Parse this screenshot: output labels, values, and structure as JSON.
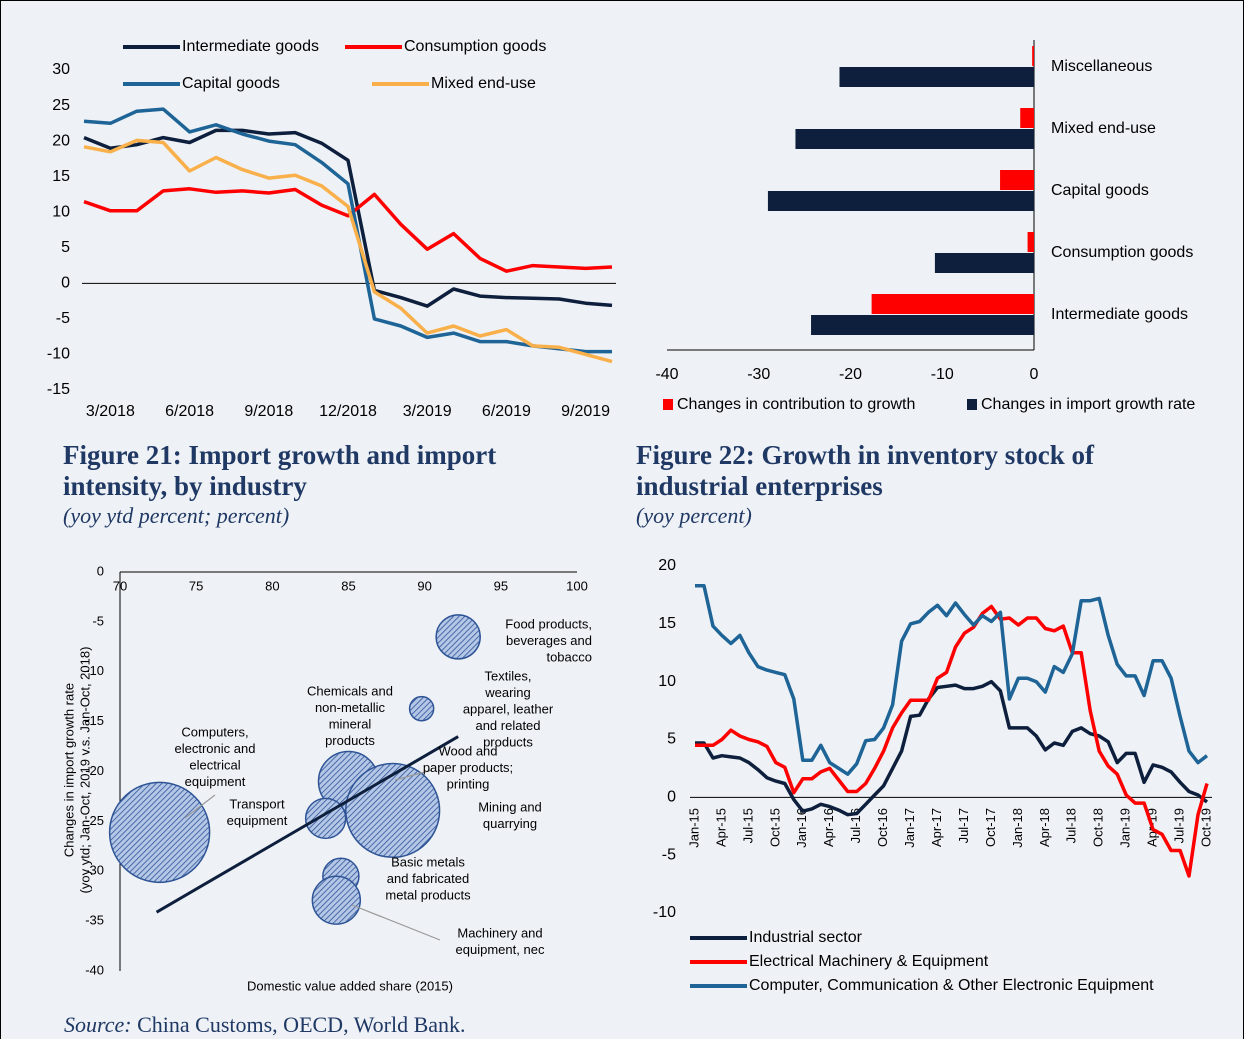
{
  "chart_data": [
    {
      "type": "line",
      "categories": [
        null,
        "3/2018",
        null,
        null,
        "6/2018",
        null,
        null,
        "9/2018",
        null,
        null,
        "12/2018",
        null,
        null,
        "3/2019",
        null,
        null,
        "6/2019",
        null,
        null,
        "9/2019",
        null
      ],
      "ylim": [
        -15,
        30
      ],
      "yticks": [
        30,
        25,
        20,
        15,
        10,
        5,
        0,
        -5,
        -10,
        -15
      ],
      "series": [
        {
          "name": "Intermediate goods",
          "color": "#0d1f3c",
          "values": [
            20.5,
            19,
            19.5,
            20.5,
            19.8,
            21.5,
            21.5,
            21,
            21.2,
            19.7,
            17.3,
            -1,
            -2,
            -3.2,
            -0.8,
            -1.8,
            -2,
            -2.1,
            -2.2,
            -2.8,
            -3.1
          ]
        },
        {
          "name": "Consumption goods",
          "color": "#ff0000",
          "values": [
            11.5,
            10.2,
            10.2,
            13,
            13.3,
            12.8,
            13,
            12.7,
            13.2,
            11,
            9.5,
            12.5,
            8.3,
            4.8,
            7,
            3.5,
            1.7,
            2.5,
            2.3,
            2.1,
            2.3
          ]
        },
        {
          "name": "Capital goods",
          "color": "#1f6496",
          "values": [
            22.8,
            22.5,
            24.2,
            24.5,
            21.3,
            22.3,
            21,
            20,
            19.5,
            17,
            14,
            -5,
            -6,
            -7.6,
            -7,
            -8.2,
            -8.2,
            -8.8,
            -9.2,
            -9.6,
            -9.6
          ]
        },
        {
          "name": "Mixed end-use",
          "color": "#f9b04b",
          "values": [
            19.2,
            18.5,
            20.1,
            19.8,
            15.8,
            17.7,
            16,
            14.8,
            15.2,
            13.7,
            10.8,
            -1.2,
            -3.5,
            -7,
            -6,
            -7.4,
            -6.5,
            -8.8,
            -9,
            -10,
            -11
          ]
        }
      ]
    },
    {
      "type": "bar",
      "orientation": "horizontal",
      "categories": [
        "Miscellaneous",
        "Mixed end-use",
        "Capital goods",
        "Consumption goods",
        "Intermediate goods"
      ],
      "xlim": [
        -40,
        0
      ],
      "xticks": [
        -40,
        -30,
        -20,
        -10,
        0
      ],
      "series": [
        {
          "name": "Changes in contribution to growth",
          "color": "#ff0000",
          "values": [
            -0.2,
            -1.5,
            -3.7,
            -0.7,
            -17.7
          ]
        },
        {
          "name": "Changes in import growth rate",
          "color": "#0d1f3c",
          "values": [
            -21.2,
            -26,
            -29,
            -10.8,
            -24.3
          ]
        }
      ]
    },
    {
      "type": "scatter",
      "xlabel": "Domestic value added share (2015)",
      "ylabel": [
        "Changes in import growth rate",
        "(yoy ytd; Jan-Oct, 2019 v.s. Jan-Oct, 2018)"
      ],
      "xlim": [
        70,
        100
      ],
      "xticks": [
        70,
        75,
        80,
        85,
        90,
        95,
        100
      ],
      "ylim": [
        -40,
        0
      ],
      "yticks": [
        0,
        -5,
        -10,
        -15,
        -20,
        -25,
        -30,
        -35,
        -40
      ],
      "points": [
        {
          "label": [
            "Food products,",
            "beverages and",
            "tobacco"
          ],
          "x": 92.2,
          "y": -6.5,
          "size": 19.4
        },
        {
          "label": [
            "Textiles,",
            "wearing",
            "apparel, leather",
            "and related",
            "products"
          ],
          "x": 89.8,
          "y": -13.7,
          "size": 5.8
        },
        {
          "label": [
            "Chemicals and",
            "non-metallic",
            "mineral",
            "products"
          ],
          "x": 85,
          "y": -21,
          "size": 36
        },
        {
          "label": [
            "Wood and",
            "paper products;",
            "printing"
          ],
          "x": 86.4,
          "y": -22.9,
          "size": 13
        },
        {
          "label": [
            "Mining and",
            "quarrying"
          ],
          "x": 87.9,
          "y": -23.9,
          "size": 88
        },
        {
          "label": [
            "Computers,",
            "electronic and",
            "electrical",
            "equipment"
          ],
          "x": 72.6,
          "y": -26.1,
          "size": 100
        },
        {
          "label": [
            "Transport",
            "equipment"
          ],
          "x": 83.5,
          "y": -24.7,
          "size": 16
        },
        {
          "label": [
            "Basic metals",
            "and fabricated",
            "metal products"
          ],
          "x": 84.5,
          "y": -30.5,
          "size": 13
        },
        {
          "label": [
            "Machinery and",
            "equipment, nec"
          ],
          "x": 84.2,
          "y": -32.9,
          "size": 23
        }
      ],
      "trendline": {
        "color": "#0d1f3c",
        "x": [
          72.4,
          92.2
        ],
        "y": [
          -34.1,
          -16.5
        ]
      }
    },
    {
      "type": "line",
      "categories": [
        "Jan-15",
        null,
        null,
        "Apr-15",
        null,
        null,
        "Jul-15",
        null,
        null,
        "Oct-15",
        null,
        null,
        "Jan-16",
        null,
        null,
        "Apr-16",
        null,
        null,
        "Jul-16",
        null,
        null,
        "Oct-16",
        null,
        null,
        "Jan-17",
        null,
        null,
        "Apr-17",
        null,
        null,
        "Jul-17",
        null,
        null,
        "Oct-17",
        null,
        null,
        "Jan-18",
        null,
        null,
        "Apr-18",
        null,
        null,
        "Jul-18",
        null,
        null,
        "Oct-18",
        null,
        null,
        "Jan-19",
        null,
        null,
        "Apr-19",
        null,
        null,
        "Jul-19",
        null,
        null,
        "Oct-19"
      ],
      "ylim": [
        -10,
        20
      ],
      "yticks": [
        20,
        15,
        10,
        5,
        0,
        -5,
        -10
      ],
      "series": [
        {
          "name": "Industrial sector",
          "color": "#0d1f3c",
          "values": [
            4.7,
            4.7,
            3.4,
            3.6,
            3.5,
            3.4,
            3.0,
            2.4,
            1.7,
            1.4,
            1.2,
            -0.2,
            -1.2,
            -1.0,
            -0.6,
            -0.8,
            -1.1,
            -1.5,
            -1.4,
            -0.6,
            0.2,
            1.0,
            2.5,
            4.0,
            7.0,
            7.1,
            8.5,
            9.5,
            9.6,
            9.7,
            9.4,
            9.4,
            9.6,
            10.0,
            9.2,
            6.0,
            6.0,
            6.0,
            5.3,
            4.1,
            4.7,
            4.5,
            5.7,
            6.0,
            5.5,
            5.3,
            4.8,
            3.0,
            3.8,
            3.8,
            1.3,
            2.8,
            2.6,
            2.2,
            1.3,
            0.5,
            0.2,
            -0.4
          ]
        },
        {
          "name": "Electrical Machinery & Equipment",
          "color": "#ff0000",
          "values": [
            4.5,
            4.5,
            4.5,
            5.0,
            5.8,
            5.3,
            5.0,
            4.8,
            4.4,
            3.0,
            2.6,
            0.4,
            1.6,
            1.6,
            2.2,
            2.5,
            1.5,
            0.5,
            0.5,
            1.2,
            2.5,
            4.0,
            6.0,
            7.3,
            8.4,
            8.4,
            8.4,
            10.3,
            10.8,
            13.0,
            14.2,
            14.7,
            15.9,
            16.5,
            15.4,
            15.5,
            14.9,
            15.5,
            15.5,
            14.6,
            14.4,
            14.8,
            12.5,
            12.5,
            7.5,
            4.0,
            2.7,
            2.0,
            0.2,
            -0.5,
            -0.5,
            -2.8,
            -3.2,
            -4.6,
            -4.6,
            -6.8,
            -1.5,
            1.2
          ]
        },
        {
          "name": "Computer, Communication & Other Electronic Equipment",
          "color": "#1f6496",
          "values": [
            18.3,
            18.3,
            14.8,
            14.0,
            13.3,
            14.0,
            12.5,
            11.3,
            11.0,
            10.8,
            10.6,
            8.5,
            3.2,
            3.2,
            4.5,
            3.0,
            2.5,
            2.0,
            2.9,
            4.9,
            5.0,
            6.0,
            8.0,
            13.5,
            15.0,
            15.2,
            16.0,
            16.6,
            15.7,
            16.8,
            15.8,
            14.9,
            15.7,
            15.2,
            16.0,
            8.5,
            10.3,
            10.3,
            10.0,
            9.1,
            11.3,
            10.8,
            12.4,
            17.0,
            17.0,
            17.2,
            14.0,
            11.5,
            10.5,
            10.5,
            8.8,
            11.8,
            11.8,
            10.3,
            7.0,
            4.0,
            3.0,
            3.6
          ]
        }
      ]
    }
  ],
  "captions": [
    {
      "title": "Figure 21: Import growth and import intensity, by industry",
      "subtitle": "(yoy ytd percent; percent)"
    },
    {
      "title": "Figure 22: Growth in inventory stock of industrial enterprises",
      "subtitle": "(yoy percent)"
    }
  ],
  "source": {
    "label": "Source:",
    "text": "China Customs, OECD, World Bank."
  }
}
